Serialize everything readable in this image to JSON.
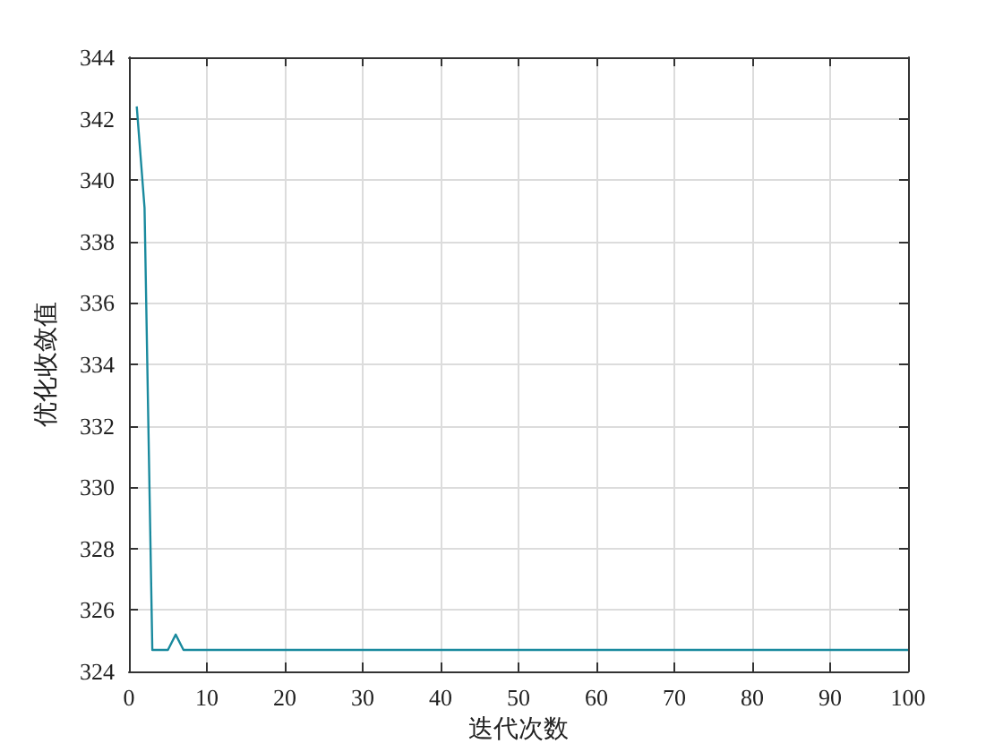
{
  "chart_data": {
    "type": "line",
    "xlabel": "迭代次数",
    "ylabel": "优化收敛值",
    "x": [
      1,
      2,
      3,
      4,
      5,
      6,
      7,
      8,
      20,
      50,
      100
    ],
    "series": [
      {
        "color": "#1a8a9e",
        "values": [
          342.4,
          339.1,
          324.7,
          324.7,
          324.7,
          325.2,
          324.7,
          324.7,
          324.7,
          324.7,
          324.7
        ]
      }
    ],
    "xlim": [
      0,
      100
    ],
    "xticks": [
      0,
      10,
      20,
      30,
      40,
      50,
      60,
      70,
      80,
      90,
      100
    ],
    "ylim": [
      324,
      344
    ],
    "yticks": [
      324,
      326,
      328,
      330,
      332,
      334,
      336,
      338,
      340,
      342,
      344
    ],
    "grid": true,
    "marker": "none",
    "line_style": "solid"
  }
}
